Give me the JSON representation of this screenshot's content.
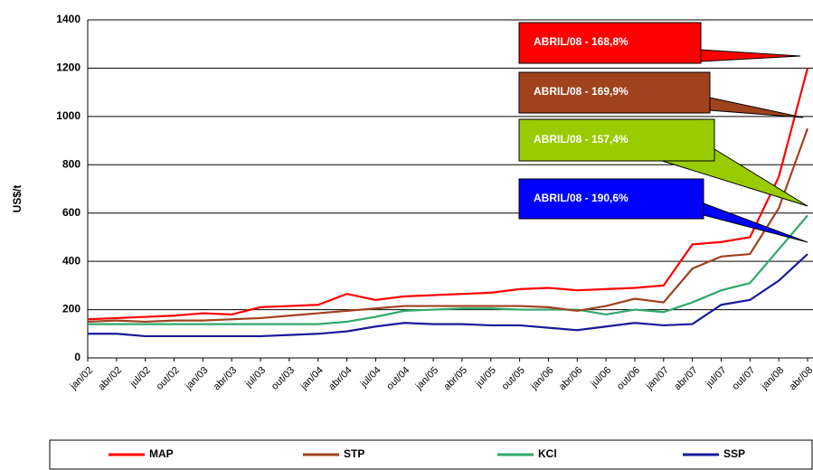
{
  "chart_data": {
    "type": "line",
    "y_label": "US$/t",
    "categories": [
      "jan/02",
      "abr/02",
      "jul/02",
      "out/02",
      "jan/03",
      "abr/03",
      "jul/03",
      "out/03",
      "jan/04",
      "abr/04",
      "jul/04",
      "out/04",
      "jan/05",
      "abr/05",
      "jul/05",
      "out/05",
      "jan/06",
      "abr/06",
      "jul/06",
      "out/06",
      "jan/07",
      "abr/07",
      "jul/07",
      "out/07",
      "jan/08",
      "abr/08"
    ],
    "series": [
      {
        "name": "MAP",
        "color": "#ff0000",
        "values": [
          160,
          165,
          170,
          175,
          185,
          180,
          210,
          215,
          220,
          265,
          240,
          255,
          260,
          265,
          270,
          285,
          290,
          280,
          285,
          290,
          300,
          470,
          480,
          500,
          750,
          1200
        ]
      },
      {
        "name": "STP",
        "color": "#a0421e",
        "values": [
          150,
          155,
          150,
          155,
          155,
          160,
          165,
          175,
          185,
          195,
          205,
          215,
          215,
          215,
          215,
          215,
          210,
          195,
          215,
          245,
          230,
          370,
          420,
          430,
          620,
          950
        ]
      },
      {
        "name": "KCl",
        "color": "#2fa86a",
        "values": [
          140,
          140,
          140,
          140,
          140,
          140,
          140,
          140,
          140,
          150,
          170,
          195,
          200,
          205,
          205,
          200,
          200,
          200,
          180,
          200,
          190,
          230,
          280,
          310,
          450,
          590
        ]
      },
      {
        "name": "SSP",
        "color": "#1a1a99",
        "values": [
          100,
          100,
          90,
          90,
          90,
          90,
          90,
          95,
          100,
          110,
          130,
          145,
          140,
          140,
          135,
          135,
          125,
          115,
          130,
          145,
          135,
          140,
          220,
          240,
          320,
          430
        ]
      }
    ],
    "annotations": [
      {
        "text": "ABRIL/08 - 168,8%",
        "color": "#ff0000"
      },
      {
        "text": "ABRIL/08 - 169,9%",
        "color": "#a0421e"
      },
      {
        "text": "ABRIL/08 - 157,4%",
        "color": "#99cc00"
      },
      {
        "text": "ABRIL/08 - 190,6%",
        "color": "#0000ff"
      }
    ],
    "ylim": [
      0,
      1400
    ],
    "yticks": [
      0,
      200,
      400,
      600,
      800,
      1000,
      1200,
      1400
    ],
    "grid": true
  }
}
